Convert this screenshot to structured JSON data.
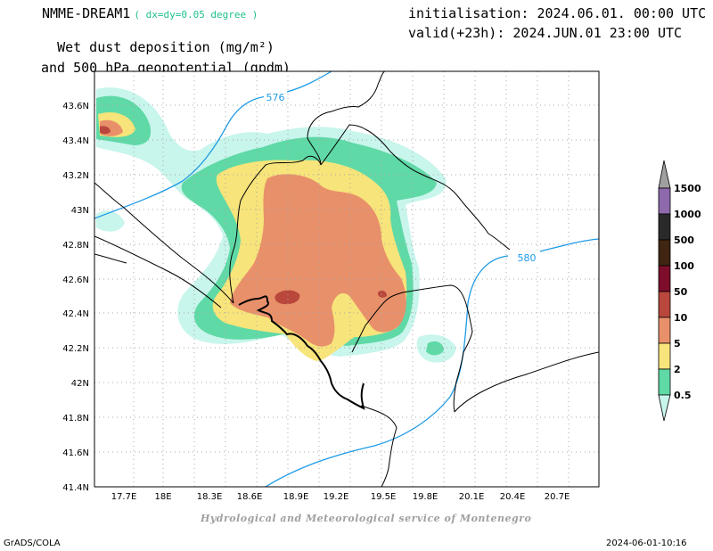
{
  "header": {
    "model": "NMME-DREAM1",
    "resolution": "( dx=dy=0.05 degree )",
    "field_line1": "Wet dust deposition (mg/m²)",
    "field_line2": "and 500 hPa geopotential (gpdm)",
    "init": "initialisation: 2024.06.01. 00:00 UTC",
    "valid": "valid(+23h): 2024.JUN.01 23:00 UTC"
  },
  "map": {
    "lon_ticks": [
      "17.7E",
      "18E",
      "18.3E",
      "18.6E",
      "18.9E",
      "19.2E",
      "19.5E",
      "19.8E",
      "20.1E",
      "20.4E",
      "20.7E"
    ],
    "lat_ticks": [
      "43.6N",
      "43.4N",
      "43.2N",
      "43N",
      "42.8N",
      "42.6N",
      "42.4N",
      "42.2N",
      "42N",
      "41.8N",
      "41.6N",
      "41.4N"
    ],
    "contour_labels": [
      "576",
      "580"
    ],
    "contour_color": "#1e9be6"
  },
  "legend": {
    "levels": [
      {
        "label": "0.5",
        "color": "#c8f5ec"
      },
      {
        "label": "2",
        "color": "#5fd9a6"
      },
      {
        "label": "5",
        "color": "#f7e47a"
      },
      {
        "label": "10",
        "color": "#e8906a"
      },
      {
        "label": "50",
        "color": "#b9473c"
      },
      {
        "label": "100",
        "color": "#7d0d2a"
      },
      {
        "label": "500",
        "color": "#3f2512"
      },
      {
        "label": "1000",
        "color": "#2a2a2a"
      },
      {
        "label": "1500",
        "color": "#8e69ab"
      }
    ],
    "top_cap_color": "#a0a0a0",
    "bottom_cap_color": "#ffffff"
  },
  "footer": {
    "credit": "Hydrological and Meteorological service of Montenegro",
    "left": "GrADS/COLA",
    "right": "2024-06-01-10:16"
  }
}
